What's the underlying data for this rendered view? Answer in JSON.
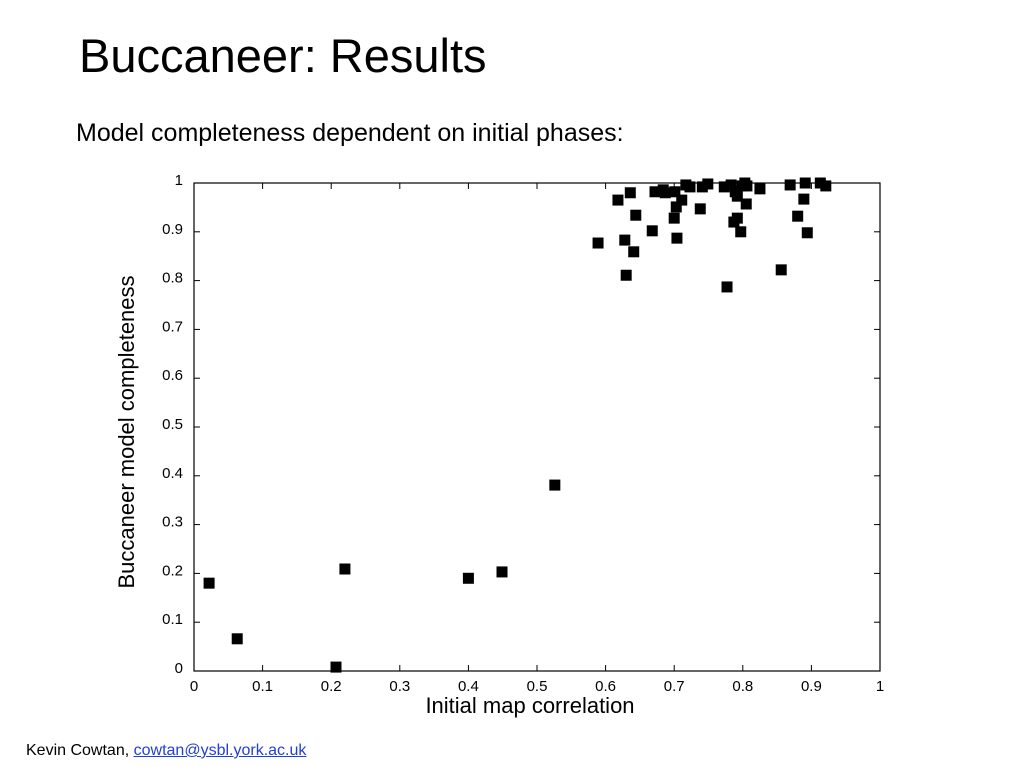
{
  "slide": {
    "title": "Buccaneer: Results",
    "subtitle": "Model completeness dependent on initial phases:"
  },
  "chart_data": {
    "type": "scatter",
    "x_label": "Initial map correlation",
    "y_label": "Buccaneer model completeness",
    "color": "#000000",
    "xlim": [
      0,
      1
    ],
    "ylim": [
      0,
      1
    ],
    "xticks": [
      0,
      0.1,
      0.2,
      0.3,
      0.4,
      0.5,
      0.6,
      0.7,
      0.8,
      0.9,
      1
    ],
    "yticks": [
      0,
      0.1,
      0.2,
      0.3,
      0.4,
      0.5,
      0.6,
      0.7,
      0.8,
      0.9,
      1
    ],
    "grid": false,
    "x": [
      0.022,
      0.063,
      0.207,
      0.22,
      0.4,
      0.449,
      0.526,
      0.589,
      0.618,
      0.636,
      0.628,
      0.63,
      0.644,
      0.641,
      0.668,
      0.672,
      0.684,
      0.687,
      0.701,
      0.7,
      0.703,
      0.704,
      0.711,
      0.717,
      0.723,
      0.738,
      0.741,
      0.749,
      0.773,
      0.777,
      0.783,
      0.789,
      0.787,
      0.792,
      0.792,
      0.797,
      0.799,
      0.803,
      0.806,
      0.805,
      0.825,
      0.856,
      0.869,
      0.88,
      0.891,
      0.889,
      0.894,
      0.913,
      0.921
    ],
    "values": [
      0.18,
      0.066,
      0.008,
      0.209,
      0.19,
      0.203,
      0.381,
      0.877,
      0.965,
      0.98,
      0.883,
      0.811,
      0.934,
      0.859,
      0.902,
      0.982,
      0.986,
      0.98,
      0.982,
      0.928,
      0.951,
      0.887,
      0.965,
      0.996,
      0.992,
      0.947,
      0.992,
      0.998,
      0.992,
      0.787,
      0.996,
      0.982,
      0.92,
      0.928,
      0.973,
      0.9,
      0.994,
      1.0,
      0.994,
      0.957,
      0.988,
      0.822,
      0.996,
      0.932,
      1.0,
      0.967,
      0.898,
      1.0,
      0.994
    ]
  },
  "footer": {
    "author": "Kevin Cowtan,",
    "email": "cowtan@ysbl.york.ac.uk"
  }
}
